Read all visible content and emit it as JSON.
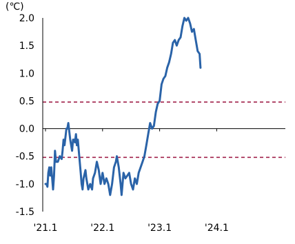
{
  "chart_data": {
    "type": "line",
    "unit_label": "(℃)",
    "y_ticks": [
      "2.0",
      "1.5",
      "1.0",
      "0.5",
      "0.0",
      "-0.5",
      "-1.0",
      "-1.5"
    ],
    "ylim": [
      -1.5,
      2.0
    ],
    "x_tick_labels": [
      "'21.1",
      "'22.1",
      "'23.1",
      "'24.1"
    ],
    "x_tick_months": [
      0,
      12,
      24,
      36
    ],
    "xlim_months": [
      0,
      50
    ],
    "grid": false,
    "reference_lines": [
      {
        "value": 0.48,
        "style": "dashed",
        "color": "#a0204a"
      },
      {
        "value": -0.52,
        "style": "dashed",
        "color": "#a0204a"
      }
    ],
    "series": [
      {
        "color": "#2a63a8",
        "points": [
          [
            0.0,
            -1.0
          ],
          [
            0.2,
            -1.0
          ],
          [
            0.4,
            -1.05
          ],
          [
            0.6,
            -0.8
          ],
          [
            0.8,
            -0.7
          ],
          [
            1.0,
            -0.85
          ],
          [
            1.2,
            -0.7
          ],
          [
            1.4,
            -0.9
          ],
          [
            1.6,
            -1.1
          ],
          [
            1.8,
            -0.85
          ],
          [
            2.0,
            -0.4
          ],
          [
            2.2,
            -0.6
          ],
          [
            2.6,
            -0.6
          ],
          [
            3.0,
            -0.5
          ],
          [
            3.4,
            -0.55
          ],
          [
            3.6,
            -0.4
          ],
          [
            3.8,
            -0.2
          ],
          [
            4.0,
            -0.3
          ],
          [
            4.4,
            0.0
          ],
          [
            4.6,
            0.0
          ],
          [
            4.8,
            0.1
          ],
          [
            5.0,
            -0.05
          ],
          [
            5.2,
            -0.2
          ],
          [
            5.6,
            -0.4
          ],
          [
            5.8,
            -0.2
          ],
          [
            6.0,
            -0.2
          ],
          [
            6.2,
            -0.25
          ],
          [
            6.4,
            -0.1
          ],
          [
            6.6,
            -0.3
          ],
          [
            6.8,
            -0.2
          ],
          [
            7.0,
            -0.4
          ],
          [
            7.2,
            -0.6
          ],
          [
            7.4,
            -0.8
          ],
          [
            7.6,
            -1.0
          ],
          [
            7.8,
            -1.1
          ],
          [
            8.0,
            -0.9
          ],
          [
            8.4,
            -0.75
          ],
          [
            8.6,
            -0.9
          ],
          [
            9.0,
            -1.1
          ],
          [
            9.4,
            -1.0
          ],
          [
            9.8,
            -1.1
          ],
          [
            10.0,
            -0.9
          ],
          [
            10.4,
            -0.8
          ],
          [
            10.8,
            -0.6
          ],
          [
            11.2,
            -0.75
          ],
          [
            11.6,
            -1.0
          ],
          [
            12.0,
            -0.8
          ],
          [
            12.4,
            -1.0
          ],
          [
            12.8,
            -0.9
          ],
          [
            13.2,
            -1.0
          ],
          [
            13.6,
            -1.2
          ],
          [
            14.0,
            -1.0
          ],
          [
            14.4,
            -0.7
          ],
          [
            14.8,
            -0.6
          ],
          [
            15.0,
            -0.5
          ],
          [
            15.4,
            -0.7
          ],
          [
            15.8,
            -1.0
          ],
          [
            16.0,
            -1.2
          ],
          [
            16.2,
            -1.0
          ],
          [
            16.4,
            -0.8
          ],
          [
            16.8,
            -0.9
          ],
          [
            17.2,
            -0.85
          ],
          [
            17.6,
            -0.8
          ],
          [
            18.0,
            -1.0
          ],
          [
            18.4,
            -1.1
          ],
          [
            18.8,
            -0.9
          ],
          [
            19.2,
            -1.0
          ],
          [
            19.6,
            -0.8
          ],
          [
            20.0,
            -0.7
          ],
          [
            20.4,
            -0.6
          ],
          [
            20.8,
            -0.5
          ],
          [
            21.2,
            -0.3
          ],
          [
            21.6,
            -0.1
          ],
          [
            22.0,
            0.1
          ],
          [
            22.4,
            0.0
          ],
          [
            22.8,
            0.05
          ],
          [
            23.2,
            0.3
          ],
          [
            23.6,
            0.45
          ],
          [
            24.0,
            0.5
          ],
          [
            24.4,
            0.8
          ],
          [
            24.8,
            0.9
          ],
          [
            25.2,
            0.95
          ],
          [
            25.6,
            1.1
          ],
          [
            26.0,
            1.2
          ],
          [
            26.4,
            1.35
          ],
          [
            26.8,
            1.55
          ],
          [
            27.2,
            1.6
          ],
          [
            27.6,
            1.5
          ],
          [
            28.0,
            1.6
          ],
          [
            28.4,
            1.65
          ],
          [
            28.8,
            1.85
          ],
          [
            29.2,
            2.0
          ],
          [
            29.6,
            1.95
          ],
          [
            30.0,
            2.0
          ],
          [
            30.4,
            1.9
          ],
          [
            30.8,
            1.75
          ],
          [
            31.2,
            1.8
          ],
          [
            31.6,
            1.6
          ],
          [
            32.0,
            1.4
          ],
          [
            32.4,
            1.35
          ],
          [
            32.6,
            1.1
          ]
        ]
      }
    ]
  }
}
